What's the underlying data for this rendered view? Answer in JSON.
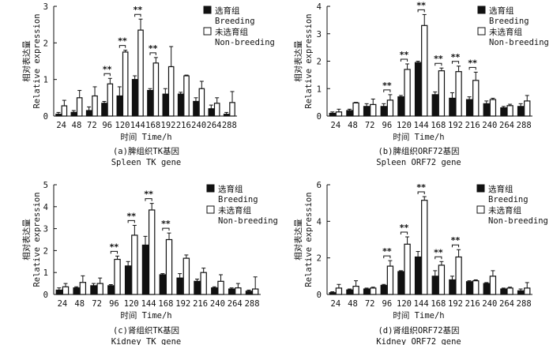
{
  "chart_data": [
    {
      "type": "bar",
      "categories": [
        "24",
        "48",
        "72",
        "96",
        "120",
        "144",
        "168",
        "192",
        "216",
        "240",
        "264",
        "288"
      ],
      "series": [
        {
          "name": "选育组 Breeding",
          "values": [
            0.05,
            0.1,
            0.15,
            0.35,
            0.55,
            1.0,
            0.7,
            0.6,
            0.6,
            0.4,
            0.2,
            0.05
          ],
          "errors": [
            0.05,
            0.05,
            0.1,
            0.05,
            0.25,
            0.1,
            0.05,
            0.15,
            0.05,
            0.1,
            0.1,
            0.05
          ]
        },
        {
          "name": "未选育组 Non-breeding",
          "values": [
            0.28,
            0.5,
            0.55,
            0.88,
            1.75,
            2.35,
            1.45,
            1.35,
            1.1,
            0.75,
            0.35,
            0.37
          ],
          "errors": [
            0.15,
            0.2,
            0.25,
            0.15,
            0.05,
            0.3,
            0.15,
            0.55,
            0.02,
            0.2,
            0.15,
            0.3
          ]
        }
      ],
      "title": "(a)脾组织TK基因",
      "title_en": "Spleen TK gene",
      "xlabel": "时间 Time/h",
      "ylabel_cn": "相对表达量",
      "ylabel_en": "Relative expression",
      "ylim": [
        0,
        3
      ],
      "yticks": [
        "0",
        "1",
        "2",
        "3"
      ],
      "significance": [
        {
          "category": "96",
          "label": "**"
        },
        {
          "category": "120",
          "label": "**"
        },
        {
          "category": "144",
          "label": "**"
        },
        {
          "category": "168",
          "label": "**"
        }
      ],
      "legend": {
        "position": "top-right",
        "items": [
          {
            "line1": "选育组",
            "line2": "Breeding"
          },
          {
            "line1": "未选育组",
            "line2": "Non-breeding"
          }
        ]
      }
    },
    {
      "type": "bar",
      "categories": [
        "24",
        "48",
        "72",
        "96",
        "120",
        "144",
        "168",
        "192",
        "216",
        "240",
        "264",
        "288"
      ],
      "series": [
        {
          "name": "选育组 Breeding",
          "values": [
            0.1,
            0.2,
            0.35,
            0.35,
            0.7,
            1.95,
            0.78,
            0.65,
            0.6,
            0.45,
            0.3,
            0.35
          ],
          "errors": [
            0.05,
            0.05,
            0.1,
            0.1,
            0.05,
            0.05,
            0.1,
            0.2,
            0.1,
            0.1,
            0.05,
            0.1
          ]
        },
        {
          "name": "未选育组 Non-breeding",
          "values": [
            0.15,
            0.48,
            0.42,
            0.58,
            1.7,
            3.3,
            1.65,
            1.62,
            1.3,
            0.6,
            0.38,
            0.55
          ],
          "errors": [
            0.1,
            0.02,
            0.2,
            0.2,
            0.2,
            0.4,
            0.1,
            0.2,
            0.3,
            0.05,
            0.05,
            0.2
          ]
        }
      ],
      "title": "(b)脾组织ORF72基因",
      "title_en": "Spleen ORF72 gene",
      "xlabel": "时间 Time/h",
      "ylabel_cn": "相对表达量",
      "ylabel_en": "Relative expression",
      "ylim": [
        0,
        4
      ],
      "yticks": [
        "0",
        "1",
        "2",
        "3",
        "4"
      ],
      "significance": [
        {
          "category": "96",
          "label": "**"
        },
        {
          "category": "120",
          "label": "**"
        },
        {
          "category": "144",
          "label": "**"
        },
        {
          "category": "168",
          "label": "**"
        },
        {
          "category": "192",
          "label": "**"
        },
        {
          "category": "216",
          "label": "**"
        }
      ],
      "legend": {
        "position": "top-right",
        "items": [
          {
            "line1": "选育组",
            "line2": "Breeding"
          },
          {
            "line1": "未选育组",
            "line2": "Non-breeding"
          }
        ]
      }
    },
    {
      "type": "bar",
      "categories": [
        "24",
        "48",
        "72",
        "96",
        "120",
        "144",
        "168",
        "192",
        "216",
        "240",
        "264",
        "288"
      ],
      "series": [
        {
          "name": "选育组 Breeding",
          "values": [
            0.2,
            0.3,
            0.4,
            0.4,
            1.3,
            2.25,
            0.9,
            0.75,
            0.6,
            0.3,
            0.25,
            0.15
          ],
          "errors": [
            0.1,
            0.05,
            0.1,
            0.05,
            0.2,
            0.4,
            0.05,
            0.2,
            0.1,
            0.05,
            0.05,
            0.05
          ]
        },
        {
          "name": "未选育组 Non-breeding",
          "values": [
            0.35,
            0.55,
            0.5,
            1.6,
            2.7,
            3.85,
            2.5,
            1.65,
            1.0,
            0.6,
            0.3,
            0.25
          ],
          "errors": [
            0.15,
            0.3,
            0.25,
            0.15,
            0.45,
            0.3,
            0.3,
            0.15,
            0.2,
            0.3,
            0.2,
            0.55
          ]
        }
      ],
      "title": "(c)肾组织TK基因",
      "title_en": "Kidney TK gene",
      "xlabel": "时间 Time/h",
      "ylabel_cn": "相对表达量",
      "ylabel_en": "Relative expression",
      "ylim": [
        0,
        5
      ],
      "yticks": [
        "0",
        "1",
        "2",
        "3",
        "4",
        "5"
      ],
      "significance": [
        {
          "category": "96",
          "label": "**"
        },
        {
          "category": "120",
          "label": "**"
        },
        {
          "category": "144",
          "label": "**"
        },
        {
          "category": "168",
          "label": "**"
        }
      ],
      "legend": {
        "position": "top-right",
        "items": [
          {
            "line1": "选育组",
            "line2": "Breeding"
          },
          {
            "line1": "未选育组",
            "line2": "Non-breeding"
          }
        ]
      }
    },
    {
      "type": "bar",
      "categories": [
        "24",
        "48",
        "72",
        "96",
        "120",
        "144",
        "168",
        "192",
        "216",
        "240",
        "264",
        "288"
      ],
      "series": [
        {
          "name": "选育组 Breeding",
          "values": [
            0.1,
            0.25,
            0.3,
            0.5,
            1.25,
            2.05,
            1.0,
            0.8,
            0.7,
            0.6,
            0.3,
            0.2
          ],
          "errors": [
            0.05,
            0.05,
            0.05,
            0.05,
            0.05,
            0.3,
            0.3,
            0.2,
            0.05,
            0.05,
            0.05,
            0.1
          ]
        },
        {
          "name": "未选育组 Non-breeding",
          "values": [
            0.35,
            0.45,
            0.35,
            1.55,
            2.75,
            5.15,
            1.6,
            2.05,
            0.75,
            1.0,
            0.35,
            0.35
          ],
          "errors": [
            0.2,
            0.3,
            0.05,
            0.3,
            0.4,
            0.2,
            0.2,
            0.4,
            0.05,
            0.3,
            0.05,
            0.3
          ]
        }
      ],
      "title": "(d)肾组织ORF72基因",
      "title_en": "Kidney ORF72 gene",
      "xlabel": "时间 Time/h",
      "ylabel_cn": "相对表达量",
      "ylabel_en": "Relative expression",
      "ylim": [
        0,
        6
      ],
      "yticks": [
        "0",
        "2",
        "4",
        "6"
      ],
      "significance": [
        {
          "category": "96",
          "label": "**"
        },
        {
          "category": "120",
          "label": "**"
        },
        {
          "category": "144",
          "label": "**"
        },
        {
          "category": "168",
          "label": "**"
        },
        {
          "category": "192",
          "label": "**"
        }
      ],
      "legend": {
        "position": "top-right",
        "items": [
          {
            "line1": "选育组",
            "line2": "Breeding"
          },
          {
            "line1": "未选育组",
            "line2": "Non-breeding"
          }
        ]
      }
    }
  ],
  "colors": {
    "breeding": "#111111",
    "non_breeding": "#ffffff",
    "axis": "#111111"
  }
}
